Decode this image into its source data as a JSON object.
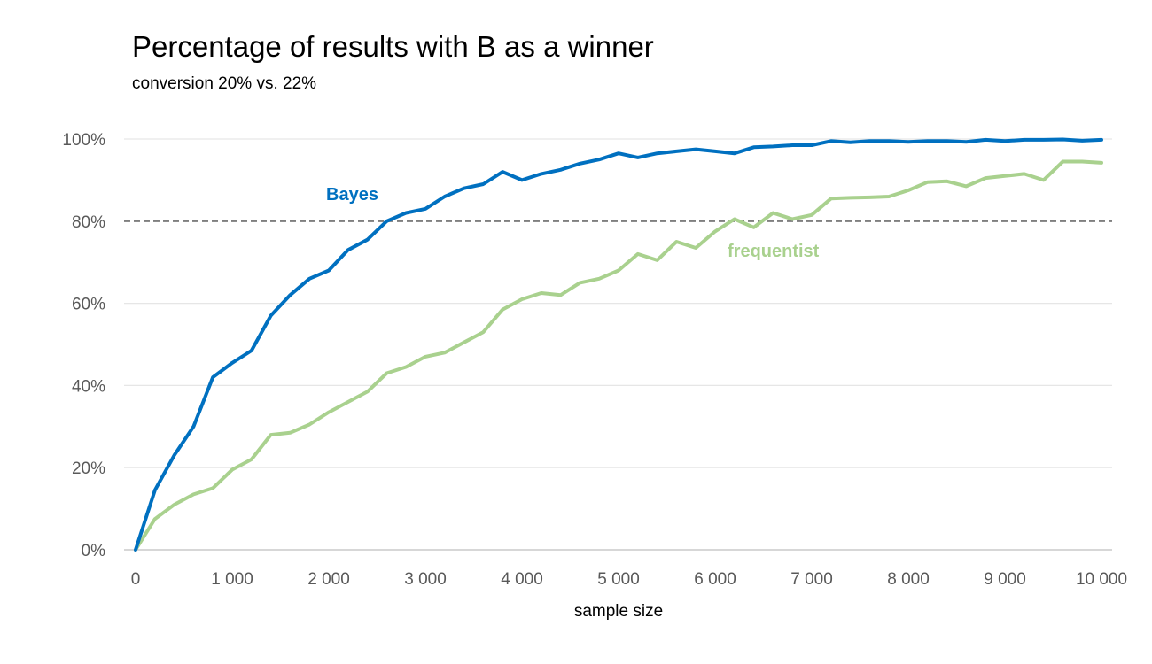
{
  "chart_data": {
    "type": "line",
    "title": "Percentage of results with B as a winner",
    "subtitle": "conversion 20% vs. 22%",
    "xlabel": "sample size",
    "ylabel": "",
    "xlim": [
      0,
      10000
    ],
    "ylim": [
      0,
      100
    ],
    "x_ticks": [
      0,
      1000,
      2000,
      3000,
      4000,
      5000,
      6000,
      7000,
      8000,
      9000,
      10000
    ],
    "x_tick_labels": [
      "0",
      "1 000",
      "2 000",
      "3 000",
      "4 000",
      "5 000",
      "6 000",
      "7 000",
      "8 000",
      "9 000",
      "10 000"
    ],
    "y_ticks": [
      0,
      20,
      40,
      60,
      80,
      100
    ],
    "y_tick_labels": [
      "0%",
      "20%",
      "40%",
      "60%",
      "80%",
      "100%"
    ],
    "grid": "horizontal",
    "reference_line": {
      "y": 80,
      "style": "dashed",
      "color": "#7f7f7f"
    },
    "x": [
      0,
      200,
      400,
      600,
      800,
      1000,
      1200,
      1400,
      1600,
      1800,
      2000,
      2200,
      2400,
      2600,
      2800,
      3000,
      3200,
      3400,
      3600,
      3800,
      4000,
      4200,
      4400,
      4600,
      4800,
      5000,
      5200,
      5400,
      5600,
      5800,
      6000,
      6200,
      6400,
      6600,
      6800,
      7000,
      7200,
      7400,
      7600,
      7800,
      8000,
      8200,
      8400,
      8600,
      8800,
      9000,
      9200,
      9400,
      9600,
      9800,
      10000
    ],
    "series": [
      {
        "name": "Bayes",
        "color": "#0070c0",
        "values": [
          0,
          14.5,
          23,
          30,
          42,
          45.5,
          48.5,
          57,
          62,
          66,
          68,
          73,
          75.5,
          80,
          82,
          83,
          86,
          88,
          89,
          92,
          90,
          91.5,
          92.5,
          94,
          95,
          96.5,
          95.5,
          96.5,
          97,
          97.5,
          97,
          96.5,
          98,
          98.2,
          98.5,
          98.5,
          99.5,
          99.2,
          99.5,
          99.5,
          99.3,
          99.5,
          99.5,
          99.3,
          99.8,
          99.5,
          99.8,
          99.8,
          99.9,
          99.6,
          99.8
        ]
      },
      {
        "name": "frequentist",
        "color": "#a9d18e",
        "values": [
          0,
          7.5,
          11,
          13.5,
          15,
          19.5,
          22,
          28,
          28.5,
          30.5,
          33.5,
          36,
          38.5,
          43,
          44.5,
          47,
          48,
          50.5,
          53,
          58.5,
          61,
          62.5,
          62,
          65,
          66,
          68,
          72,
          70.5,
          75,
          73.5,
          77.5,
          80.5,
          78.5,
          82,
          80.5,
          81.5,
          85.5,
          85.7,
          85.8,
          86,
          87.5,
          89.5,
          89.7,
          88.5,
          90.5,
          91,
          91.5,
          90,
          94.5,
          94.5,
          94.2
        ]
      }
    ]
  }
}
